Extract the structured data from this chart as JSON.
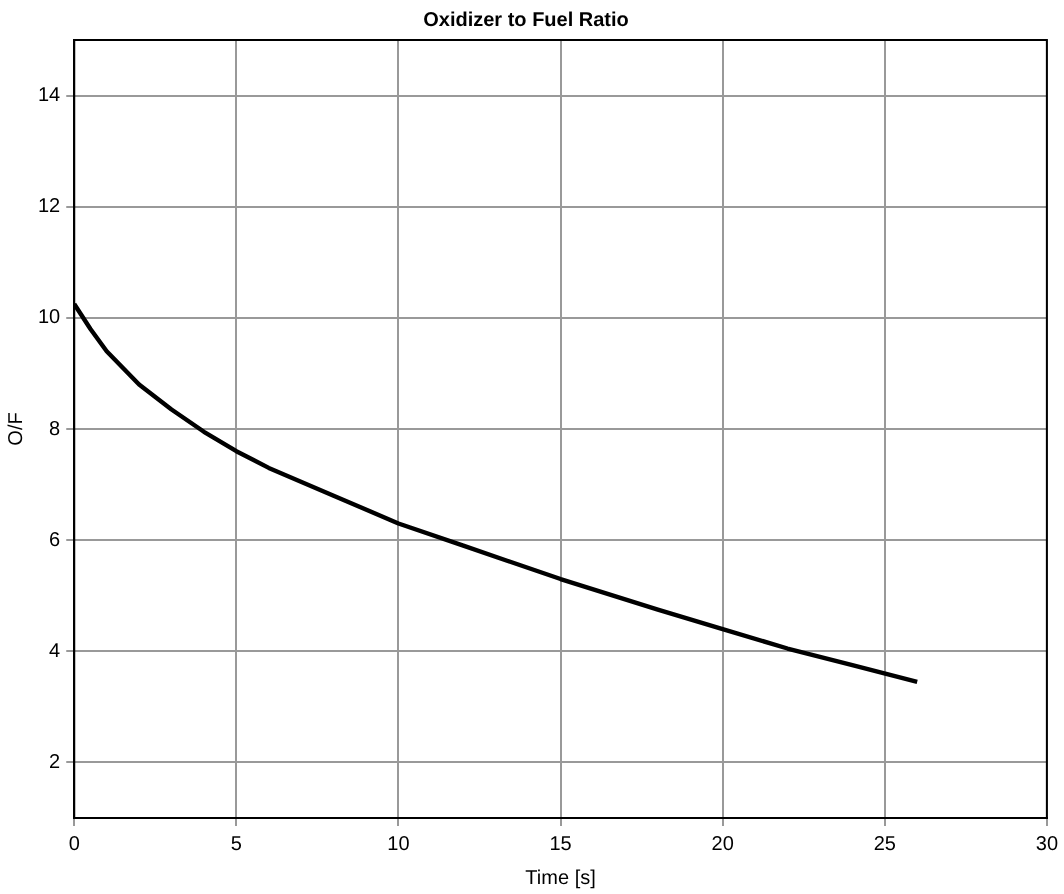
{
  "chart_data": {
    "type": "line",
    "title": "Oxidizer to Fuel Ratio",
    "xlabel": "Time [s]",
    "ylabel": "O/F",
    "x": [
      0,
      0.5,
      1,
      2,
      3,
      4,
      5,
      6,
      8,
      10,
      12,
      15,
      18,
      20,
      22,
      24,
      26
    ],
    "series": [
      {
        "color": "#000000",
        "values": [
          10.25,
          9.8,
          9.4,
          8.8,
          8.35,
          7.95,
          7.6,
          7.3,
          6.8,
          6.3,
          5.9,
          5.3,
          4.75,
          4.4,
          4.05,
          3.75,
          3.45
        ]
      }
    ],
    "xlim": [
      0,
      30
    ],
    "xticks": [
      0,
      5,
      10,
      15,
      20,
      25,
      30
    ],
    "ylim": [
      1,
      15
    ],
    "yticks": [
      2,
      4,
      6,
      8,
      10,
      12,
      14
    ],
    "grid": true,
    "legend": false,
    "marker": "none",
    "line_style": "solid"
  }
}
